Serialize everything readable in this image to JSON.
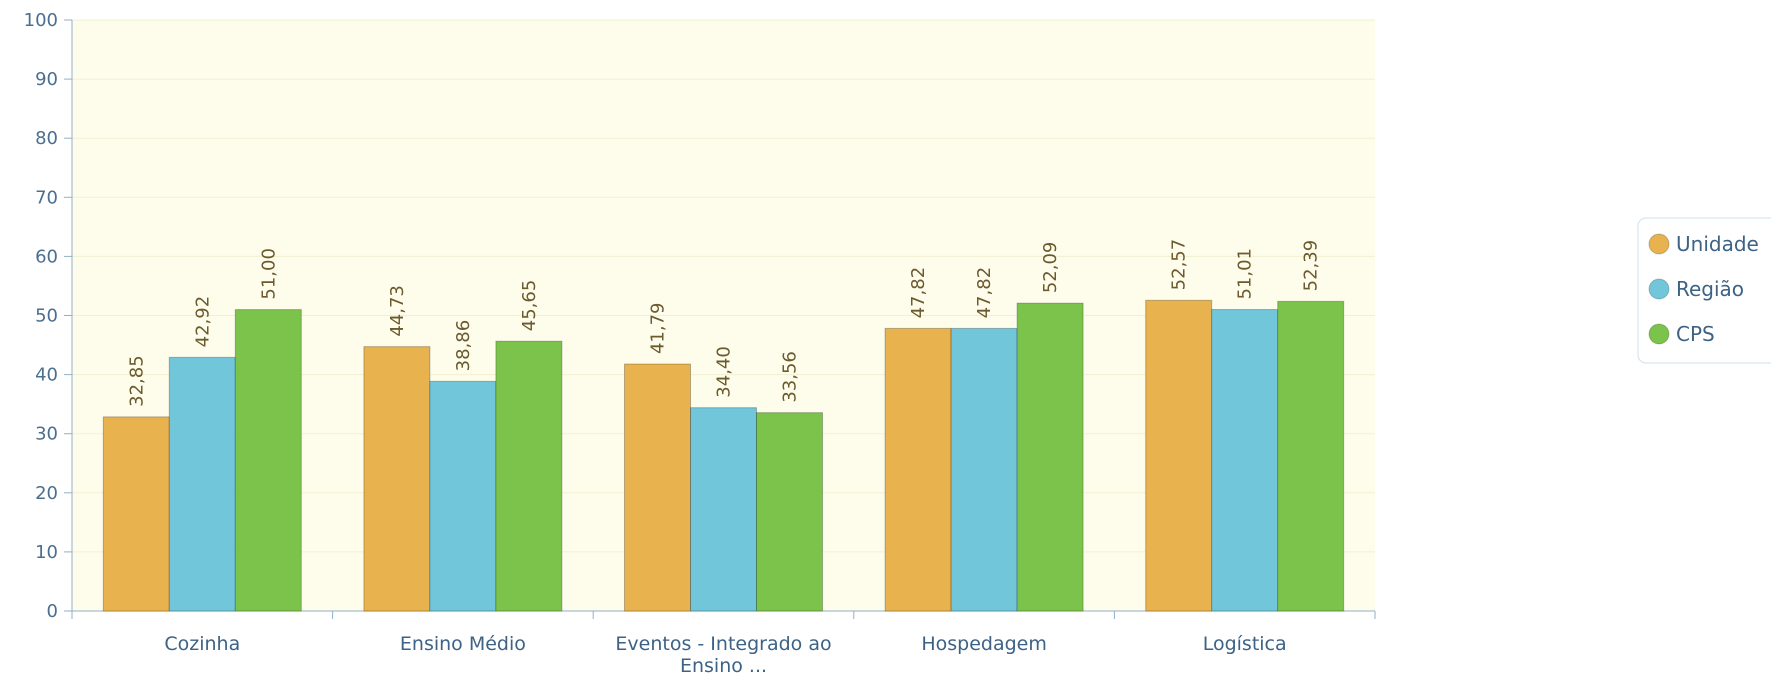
{
  "chart_data": {
    "type": "bar",
    "categories": [
      "Cozinha",
      "Ensino Médio",
      "Eventos - Integrado ao Ensino ...",
      "Hospedagem",
      "Logística"
    ],
    "series": [
      {
        "name": "Unidade",
        "color": "#e8b24e",
        "values": [
          32.85,
          44.73,
          41.79,
          47.82,
          52.57
        ],
        "value_labels": [
          "32,85",
          "44,73",
          "41,79",
          "47,82",
          "52,57"
        ]
      },
      {
        "name": "Região",
        "color": "#72c6da",
        "values": [
          42.92,
          38.86,
          34.4,
          47.82,
          51.01
        ],
        "value_labels": [
          "42,92",
          "38,86",
          "34,40",
          "47,82",
          "51,01"
        ]
      },
      {
        "name": "CPS",
        "color": "#7cc34c",
        "values": [
          51.0,
          45.65,
          33.56,
          52.09,
          52.39
        ],
        "value_labels": [
          "51,00",
          "45,65",
          "33,56",
          "52,09",
          "52,39"
        ]
      }
    ],
    "ylim": [
      0,
      100
    ],
    "yticks": [
      0,
      10,
      20,
      30,
      40,
      50,
      60,
      70,
      80,
      90,
      100
    ],
    "grid": true,
    "legend": "right"
  }
}
